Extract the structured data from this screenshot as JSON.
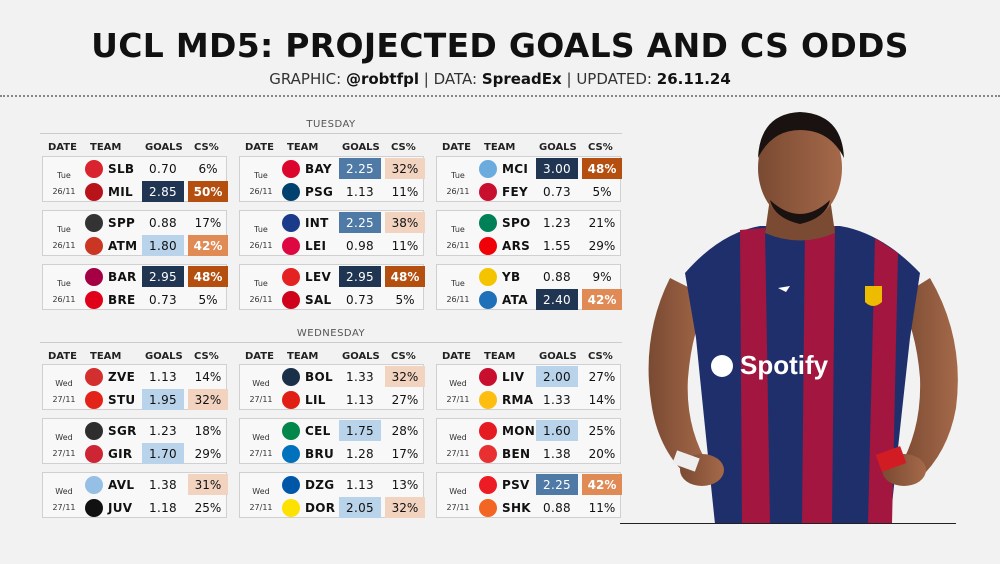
{
  "header": {
    "title": "UCL MD5: PROJECTED GOALS AND CS ODDS",
    "sub_graphic": "GRAPHIC:",
    "sub_handle": "@robtfpl",
    "sub_data": "DATA:",
    "sub_source": "SpreadEx",
    "sub_updated": "UPDATED:",
    "sub_date": "26.11.24"
  },
  "columns": {
    "date": "DATE",
    "team": "TEAM",
    "goals": "GOALS",
    "cs": "CS%"
  },
  "days": [
    {
      "label": "TUESDAY",
      "matches": [
        {
          "day": "Tue",
          "date": "26/11",
          "home": {
            "team": "SLB",
            "goals": "0.70",
            "cs": "6%",
            "gtier": 0,
            "ctier": 0,
            "color": "#d9232e"
          },
          "away": {
            "team": "MIL",
            "goals": "2.85",
            "cs": "50%",
            "gtier": 3,
            "ctier": 3,
            "color": "#b8121a"
          }
        },
        {
          "day": "Tue",
          "date": "26/11",
          "home": {
            "team": "BAY",
            "goals": "2.25",
            "cs": "32%",
            "gtier": 2,
            "ctier": 1,
            "color": "#dc052d"
          },
          "away": {
            "team": "PSG",
            "goals": "1.13",
            "cs": "11%",
            "gtier": 0,
            "ctier": 0,
            "color": "#004170"
          }
        },
        {
          "day": "Tue",
          "date": "26/11",
          "home": {
            "team": "MCI",
            "goals": "3.00",
            "cs": "48%",
            "gtier": 3,
            "ctier": 3,
            "color": "#6cabdd"
          },
          "away": {
            "team": "FEY",
            "goals": "0.73",
            "cs": "5%",
            "gtier": 0,
            "ctier": 0,
            "color": "#c8102e"
          }
        },
        {
          "day": "Tue",
          "date": "26/11",
          "home": {
            "team": "SPP",
            "goals": "0.88",
            "cs": "17%",
            "gtier": 0,
            "ctier": 0,
            "color": "#333333"
          },
          "away": {
            "team": "ATM",
            "goals": "1.80",
            "cs": "42%",
            "gtier": 1,
            "ctier": 2,
            "color": "#cb3524"
          }
        },
        {
          "day": "Tue",
          "date": "26/11",
          "home": {
            "team": "INT",
            "goals": "2.25",
            "cs": "38%",
            "gtier": 2,
            "ctier": 1,
            "color": "#1a3a8a"
          },
          "away": {
            "team": "LEI",
            "goals": "0.98",
            "cs": "11%",
            "gtier": 0,
            "ctier": 0,
            "color": "#dd0741"
          }
        },
        {
          "day": "Tue",
          "date": "26/11",
          "home": {
            "team": "SPO",
            "goals": "1.23",
            "cs": "21%",
            "gtier": 0,
            "ctier": 0,
            "color": "#008057"
          },
          "away": {
            "team": "ARS",
            "goals": "1.55",
            "cs": "29%",
            "gtier": 0,
            "ctier": 0,
            "color": "#ef0107"
          }
        },
        {
          "day": "Tue",
          "date": "26/11",
          "home": {
            "team": "BAR",
            "goals": "2.95",
            "cs": "48%",
            "gtier": 3,
            "ctier": 3,
            "color": "#a50044"
          },
          "away": {
            "team": "BRE",
            "goals": "0.73",
            "cs": "5%",
            "gtier": 0,
            "ctier": 0,
            "color": "#e1001a"
          }
        },
        {
          "day": "Tue",
          "date": "26/11",
          "home": {
            "team": "LEV",
            "goals": "2.95",
            "cs": "48%",
            "gtier": 3,
            "ctier": 3,
            "color": "#e32221"
          },
          "away": {
            "team": "SAL",
            "goals": "0.73",
            "cs": "5%",
            "gtier": 0,
            "ctier": 0,
            "color": "#d0021b"
          }
        },
        {
          "day": "Tue",
          "date": "26/11",
          "home": {
            "team": "YB",
            "goals": "0.88",
            "cs": "9%",
            "gtier": 0,
            "ctier": 0,
            "color": "#f5c400"
          },
          "away": {
            "team": "ATA",
            "goals": "2.40",
            "cs": "42%",
            "gtier": 3,
            "ctier": 2,
            "color": "#1e71b8"
          }
        }
      ]
    },
    {
      "label": "WEDNESDAY",
      "matches": [
        {
          "day": "Wed",
          "date": "27/11",
          "home": {
            "team": "ZVE",
            "goals": "1.13",
            "cs": "14%",
            "gtier": 0,
            "ctier": 0,
            "color": "#d32f2f"
          },
          "away": {
            "team": "STU",
            "goals": "1.95",
            "cs": "32%",
            "gtier": 1,
            "ctier": 1,
            "color": "#e32219"
          }
        },
        {
          "day": "Wed",
          "date": "27/11",
          "home": {
            "team": "BOL",
            "goals": "1.33",
            "cs": "32%",
            "gtier": 0,
            "ctier": 1,
            "color": "#1a2f48"
          },
          "away": {
            "team": "LIL",
            "goals": "1.13",
            "cs": "27%",
            "gtier": 0,
            "ctier": 0,
            "color": "#e01e13"
          }
        },
        {
          "day": "Wed",
          "date": "27/11",
          "home": {
            "team": "LIV",
            "goals": "2.00",
            "cs": "27%",
            "gtier": 1,
            "ctier": 0,
            "color": "#c8102e"
          },
          "away": {
            "team": "RMA",
            "goals": "1.33",
            "cs": "14%",
            "gtier": 0,
            "ctier": 0,
            "color": "#febe10"
          }
        },
        {
          "day": "Wed",
          "date": "27/11",
          "home": {
            "team": "SGR",
            "goals": "1.23",
            "cs": "18%",
            "gtier": 0,
            "ctier": 0,
            "color": "#2e2e2e"
          },
          "away": {
            "team": "GIR",
            "goals": "1.70",
            "cs": "29%",
            "gtier": 1,
            "ctier": 0,
            "color": "#cd2534"
          }
        },
        {
          "day": "Wed",
          "date": "27/11",
          "home": {
            "team": "CEL",
            "goals": "1.75",
            "cs": "28%",
            "gtier": 1,
            "ctier": 0,
            "color": "#018749"
          },
          "away": {
            "team": "BRU",
            "goals": "1.28",
            "cs": "17%",
            "gtier": 0,
            "ctier": 0,
            "color": "#0071bc"
          }
        },
        {
          "day": "Wed",
          "date": "27/11",
          "home": {
            "team": "MON",
            "goals": "1.60",
            "cs": "25%",
            "gtier": 1,
            "ctier": 0,
            "color": "#e51b22"
          },
          "away": {
            "team": "BEN",
            "goals": "1.38",
            "cs": "20%",
            "gtier": 0,
            "ctier": 0,
            "color": "#e83030"
          }
        },
        {
          "day": "Wed",
          "date": "27/11",
          "home": {
            "team": "AVL",
            "goals": "1.38",
            "cs": "31%",
            "gtier": 0,
            "ctier": 1,
            "color": "#95bfe5"
          },
          "away": {
            "team": "JUV",
            "goals": "1.18",
            "cs": "25%",
            "gtier": 0,
            "ctier": 0,
            "color": "#111111"
          }
        },
        {
          "day": "Wed",
          "date": "27/11",
          "home": {
            "team": "DZG",
            "goals": "1.13",
            "cs": "13%",
            "gtier": 0,
            "ctier": 0,
            "color": "#0057a8"
          },
          "away": {
            "team": "DOR",
            "goals": "2.05",
            "cs": "32%",
            "gtier": 1,
            "ctier": 1,
            "color": "#fde100"
          }
        },
        {
          "day": "Wed",
          "date": "27/11",
          "home": {
            "team": "PSV",
            "goals": "2.25",
            "cs": "42%",
            "gtier": 2,
            "ctier": 2,
            "color": "#ed1c24"
          },
          "away": {
            "team": "SHK",
            "goals": "0.88",
            "cs": "11%",
            "gtier": 0,
            "ctier": 0,
            "color": "#f26522"
          }
        }
      ]
    }
  ],
  "colors": {
    "goals_tiers": [
      "transparent",
      "#b9d3ea",
      "#4f7aa6",
      "#1f3552"
    ],
    "cs_tiers": [
      "transparent",
      "#f2d3c0",
      "#e08a55",
      "#b44f10"
    ],
    "text_dark": "#111111",
    "text_light": "#ffffff"
  },
  "player": {
    "sponsor": "Spotify"
  }
}
